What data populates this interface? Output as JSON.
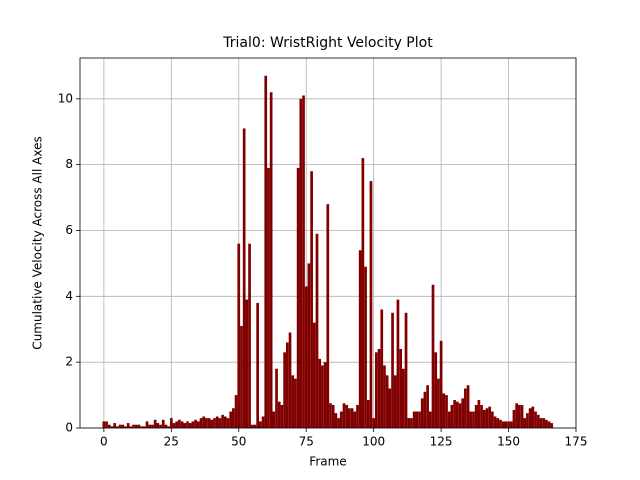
{
  "chart_data": {
    "type": "bar",
    "title": "Trial0: WristRight Velocity Plot",
    "x_label": "Frame",
    "y_label": "Cumulative Velocity Across All Axes",
    "color": "#800000",
    "grid": true,
    "xlim": [
      -8.85,
      175
    ],
    "xticks": [
      0,
      25,
      50,
      75,
      100,
      125,
      150,
      175
    ],
    "ylim": [
      0,
      11.24
    ],
    "yticks": [
      0,
      2,
      4,
      6,
      8,
      10
    ],
    "x": [
      0,
      1,
      2,
      3,
      4,
      5,
      6,
      7,
      8,
      9,
      10,
      11,
      12,
      13,
      14,
      15,
      16,
      17,
      18,
      19,
      20,
      21,
      22,
      23,
      24,
      25,
      26,
      27,
      28,
      29,
      30,
      31,
      32,
      33,
      34,
      35,
      36,
      37,
      38,
      39,
      40,
      41,
      42,
      43,
      44,
      45,
      46,
      47,
      48,
      49,
      50,
      51,
      52,
      53,
      54,
      55,
      56,
      57,
      58,
      59,
      60,
      61,
      62,
      63,
      64,
      65,
      66,
      67,
      68,
      69,
      70,
      71,
      72,
      73,
      74,
      75,
      76,
      77,
      78,
      79,
      80,
      81,
      82,
      83,
      84,
      85,
      86,
      87,
      88,
      89,
      90,
      91,
      92,
      93,
      94,
      95,
      96,
      97,
      98,
      99,
      100,
      101,
      102,
      103,
      104,
      105,
      106,
      107,
      108,
      109,
      110,
      111,
      112,
      113,
      114,
      115,
      116,
      117,
      118,
      119,
      120,
      121,
      122,
      123,
      124,
      125,
      126,
      127,
      128,
      129,
      130,
      131,
      132,
      133,
      134,
      135,
      136,
      137,
      138,
      139,
      140,
      141,
      142,
      143,
      144,
      145,
      146,
      147,
      148,
      149,
      150,
      151,
      152,
      153,
      154,
      155,
      156,
      157,
      158,
      159,
      160,
      161,
      162,
      163,
      164,
      165,
      166
    ],
    "values": [
      0.2,
      0.2,
      0.1,
      0.05,
      0.15,
      0.05,
      0.1,
      0.1,
      0.05,
      0.15,
      0.05,
      0.1,
      0.1,
      0.1,
      0.05,
      0.05,
      0.2,
      0.1,
      0.1,
      0.25,
      0.15,
      0.1,
      0.25,
      0.1,
      0.05,
      0.3,
      0.15,
      0.2,
      0.25,
      0.2,
      0.15,
      0.2,
      0.15,
      0.2,
      0.25,
      0.2,
      0.3,
      0.35,
      0.3,
      0.3,
      0.25,
      0.3,
      0.35,
      0.3,
      0.4,
      0.35,
      0.3,
      0.5,
      0.6,
      1.0,
      5.6,
      3.1,
      9.1,
      3.9,
      5.6,
      0.1,
      0.1,
      3.8,
      0.2,
      0.35,
      10.7,
      7.9,
      10.2,
      0.5,
      1.8,
      0.8,
      0.7,
      2.3,
      2.6,
      2.9,
      1.6,
      1.5,
      7.9,
      10.0,
      10.1,
      4.3,
      5.0,
      7.8,
      3.2,
      5.9,
      2.1,
      1.9,
      2.0,
      6.8,
      0.75,
      0.7,
      0.45,
      0.3,
      0.5,
      0.75,
      0.7,
      0.6,
      0.6,
      0.5,
      0.7,
      5.4,
      8.2,
      4.9,
      0.85,
      7.5,
      0.3,
      2.3,
      2.4,
      3.6,
      1.9,
      1.6,
      1.2,
      3.5,
      1.6,
      3.9,
      2.4,
      1.8,
      3.5,
      0.3,
      0.3,
      0.5,
      0.5,
      0.5,
      0.9,
      1.1,
      1.3,
      0.5,
      4.35,
      2.3,
      1.5,
      2.65,
      1.05,
      1.0,
      0.5,
      0.7,
      0.85,
      0.8,
      0.75,
      0.9,
      1.2,
      1.3,
      0.5,
      0.5,
      0.7,
      0.85,
      0.7,
      0.55,
      0.6,
      0.65,
      0.5,
      0.35,
      0.3,
      0.25,
      0.2,
      0.2,
      0.2,
      0.2,
      0.55,
      0.75,
      0.7,
      0.7,
      0.3,
      0.45,
      0.6,
      0.65,
      0.5,
      0.4,
      0.3,
      0.3,
      0.25,
      0.2,
      0.15
    ]
  }
}
